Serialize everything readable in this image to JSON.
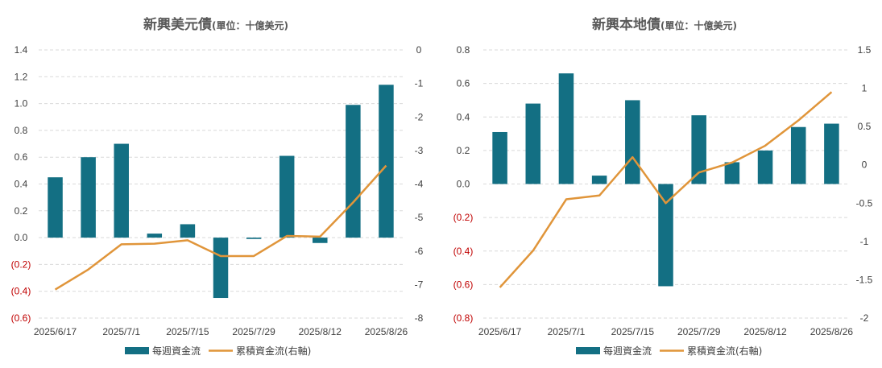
{
  "colors": {
    "bar": "#136f83",
    "line": "#e0953a",
    "negative_tick": "#c00000",
    "grid": "#d9d9d9"
  },
  "chart_data": [
    {
      "type": "bar",
      "title": "新興美元債",
      "subtitle": "(單位：十億美元)",
      "x_tick_labels": [
        "2025/6/17",
        "2025/7/1",
        "2025/7/15",
        "2025/7/29",
        "2025/8/12",
        "2025/8/26"
      ],
      "categories": [
        "2025/6/17",
        "2025/6/24",
        "2025/7/1",
        "2025/7/8",
        "2025/7/15",
        "2025/7/22",
        "2025/7/29",
        "2025/8/5",
        "2025/8/12",
        "2025/8/19",
        "2025/8/26"
      ],
      "series": [
        {
          "name": "每週資金流",
          "type": "bar",
          "axis": "left",
          "values": [
            0.45,
            0.6,
            0.7,
            0.03,
            0.1,
            -0.45,
            -0.01,
            0.61,
            -0.04,
            0.99,
            1.14
          ]
        },
        {
          "name": "累積資金流(右軸)",
          "type": "line",
          "axis": "right",
          "values": [
            -7.15,
            -6.55,
            -5.8,
            -5.78,
            -5.68,
            -6.15,
            -6.15,
            -5.55,
            -5.57,
            -4.55,
            -3.45
          ]
        }
      ],
      "y_left": {
        "min": -0.6,
        "max": 1.4,
        "step": 0.2,
        "tick_labels": [
          "1.4",
          "1.2",
          "1.0",
          "0.8",
          "0.6",
          "0.4",
          "0.2",
          "0.0",
          "(0.2)",
          "(0.4)",
          "(0.6)"
        ]
      },
      "y_right": {
        "min": -8,
        "max": 0,
        "step": 1,
        "tick_labels": [
          "0",
          "-1",
          "-2",
          "-3",
          "-4",
          "-5",
          "-6",
          "-7",
          "-8"
        ]
      },
      "grid": true,
      "legend": "bottom",
      "legend_labels": [
        "每週資金流",
        "累積資金流(右軸)"
      ]
    },
    {
      "type": "bar",
      "title": "新興本地債",
      "subtitle": "(單位：十億美元)",
      "x_tick_labels": [
        "2025/6/17",
        "2025/7/1",
        "2025/7/15",
        "2025/7/29",
        "2025/8/12",
        "2025/8/26"
      ],
      "categories": [
        "2025/6/17",
        "2025/6/24",
        "2025/7/1",
        "2025/7/8",
        "2025/7/15",
        "2025/7/22",
        "2025/7/29",
        "2025/8/5",
        "2025/8/12",
        "2025/8/19",
        "2025/8/26"
      ],
      "series": [
        {
          "name": "每週資金流",
          "type": "bar",
          "axis": "left",
          "values": [
            0.31,
            0.48,
            0.66,
            0.05,
            0.5,
            -0.61,
            0.41,
            0.13,
            0.2,
            0.34,
            0.36
          ]
        },
        {
          "name": "累積資金流(右軸)",
          "type": "line",
          "axis": "right",
          "values": [
            -1.6,
            -1.12,
            -0.45,
            -0.4,
            0.1,
            -0.5,
            -0.1,
            0.03,
            0.25,
            0.58,
            0.95
          ]
        }
      ],
      "y_left": {
        "min": -0.8,
        "max": 0.8,
        "step": 0.2,
        "tick_labels": [
          "0.8",
          "0.6",
          "0.4",
          "0.2",
          "0.0",
          "(0.2)",
          "(0.4)",
          "(0.6)",
          "(0.8)"
        ]
      },
      "y_right": {
        "min": -2,
        "max": 1.5,
        "step": 0.5,
        "tick_labels": [
          "1.5",
          "1",
          "0.5",
          "0",
          "-0.5",
          "-1",
          "-1.5",
          "-2"
        ]
      },
      "grid": true,
      "legend": "bottom",
      "legend_labels": [
        "每週資金流",
        "累積資金流(右軸)"
      ]
    }
  ]
}
